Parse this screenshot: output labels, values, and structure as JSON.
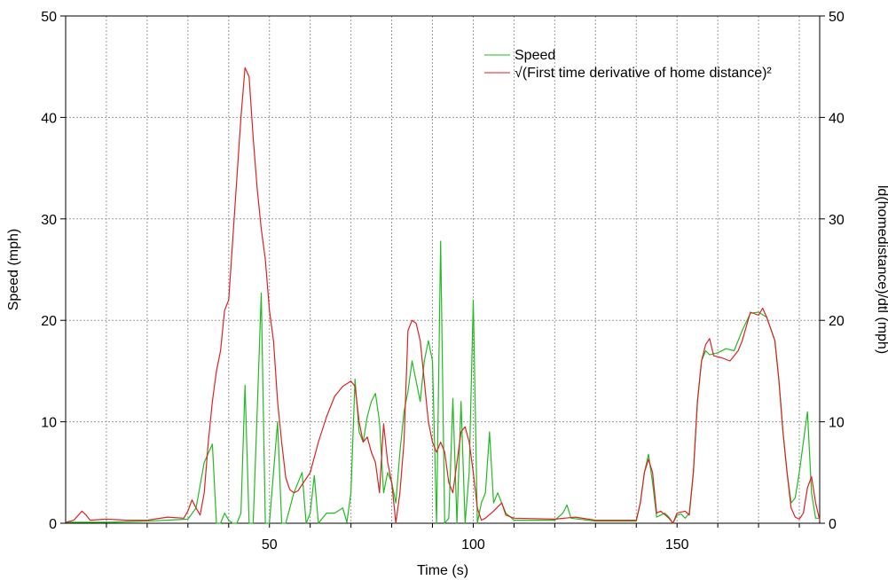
{
  "chart_data": {
    "type": "line",
    "xlabel": "Time (s)",
    "ylabel": "Speed (mph)",
    "y2label": "ld(homedistance)/dtl (mph)",
    "xlim": [
      0,
      185
    ],
    "ylim": [
      0,
      50
    ],
    "xticks": [
      50,
      100,
      150
    ],
    "yticks": [
      0,
      10,
      20,
      30,
      40,
      50
    ],
    "grid": true,
    "legend_position": "top-right",
    "series": [
      {
        "name": "Speed",
        "color": "#22bb22",
        "points": [
          [
            0,
            0.1
          ],
          [
            10,
            0.1
          ],
          [
            20,
            0.2
          ],
          [
            30,
            0.4
          ],
          [
            32,
            1.5
          ],
          [
            34,
            6
          ],
          [
            36,
            7.8
          ],
          [
            37,
            0
          ],
          [
            38,
            0
          ],
          [
            39,
            1
          ],
          [
            40,
            0.3
          ],
          [
            41,
            0
          ],
          [
            42,
            0
          ],
          [
            43,
            1
          ],
          [
            44,
            13.6
          ],
          [
            45,
            0
          ],
          [
            46,
            0
          ],
          [
            47,
            11
          ],
          [
            48,
            22.7
          ],
          [
            49,
            0
          ],
          [
            50,
            0
          ],
          [
            51,
            5
          ],
          [
            52,
            10
          ],
          [
            53,
            0
          ],
          [
            54,
            0
          ],
          [
            56,
            3
          ],
          [
            58,
            5
          ],
          [
            59,
            0
          ],
          [
            60,
            1
          ],
          [
            61,
            4.7
          ],
          [
            62,
            0
          ],
          [
            64,
            1
          ],
          [
            66,
            1
          ],
          [
            68,
            1.5
          ],
          [
            69,
            0.1
          ],
          [
            70,
            3
          ],
          [
            71,
            14.2
          ],
          [
            72,
            9
          ],
          [
            73,
            8
          ],
          [
            74,
            10.5
          ],
          [
            75,
            12
          ],
          [
            76,
            12.8
          ],
          [
            77,
            10
          ],
          [
            78,
            3
          ],
          [
            79,
            5
          ],
          [
            80,
            4
          ],
          [
            81,
            2
          ],
          [
            82,
            7
          ],
          [
            83,
            11
          ],
          [
            84,
            13
          ],
          [
            85,
            16
          ],
          [
            86,
            14
          ],
          [
            87,
            12
          ],
          [
            88,
            16
          ],
          [
            89,
            18
          ],
          [
            90,
            16
          ],
          [
            91,
            0
          ],
          [
            92,
            27.8
          ],
          [
            93,
            0
          ],
          [
            94,
            0.5
          ],
          [
            95,
            12.3
          ],
          [
            96,
            0
          ],
          [
            97,
            12
          ],
          [
            98,
            0
          ],
          [
            99,
            5
          ],
          [
            100,
            22
          ],
          [
            101,
            0
          ],
          [
            102,
            2
          ],
          [
            103,
            3
          ],
          [
            104,
            9
          ],
          [
            105,
            2
          ],
          [
            106,
            3
          ],
          [
            108,
            1
          ],
          [
            110,
            0.3
          ],
          [
            120,
            0.3
          ],
          [
            122,
            1
          ],
          [
            123,
            1.8
          ],
          [
            124,
            0.5
          ],
          [
            130,
            0.2
          ],
          [
            140,
            0.2
          ],
          [
            141,
            2
          ],
          [
            142,
            5
          ],
          [
            143,
            6.8
          ],
          [
            144,
            4
          ],
          [
            145,
            0.6
          ],
          [
            146,
            0.8
          ],
          [
            147,
            1
          ],
          [
            148,
            0.6
          ],
          [
            149,
            0
          ],
          [
            150,
            0.8
          ],
          [
            151,
            0.9
          ],
          [
            152,
            0.5
          ],
          [
            153,
            1
          ],
          [
            154,
            5
          ],
          [
            155,
            12
          ],
          [
            156,
            16
          ],
          [
            157,
            17
          ],
          [
            158,
            16.6
          ],
          [
            160,
            16.8
          ],
          [
            162,
            17.2
          ],
          [
            164,
            17
          ],
          [
            166,
            19
          ],
          [
            168,
            20.7
          ],
          [
            170,
            20.8
          ],
          [
            172,
            20.3
          ],
          [
            174,
            18
          ],
          [
            175,
            14
          ],
          [
            176,
            9
          ],
          [
            177,
            5
          ],
          [
            178,
            2
          ],
          [
            179,
            2.5
          ],
          [
            180,
            5
          ],
          [
            181,
            8
          ],
          [
            182,
            11
          ],
          [
            183,
            3
          ],
          [
            184,
            0.5
          ],
          [
            185,
            0.5
          ]
        ]
      },
      {
        "name": "√(First time derivative of home distance)²",
        "color": "#dd2222",
        "points": [
          [
            0,
            0.1
          ],
          [
            2,
            0.3
          ],
          [
            4,
            1.2
          ],
          [
            5,
            0.8
          ],
          [
            6,
            0.3
          ],
          [
            10,
            0.4
          ],
          [
            15,
            0.3
          ],
          [
            20,
            0.3
          ],
          [
            25,
            0.6
          ],
          [
            29,
            0.5
          ],
          [
            30,
            1.2
          ],
          [
            31,
            2.3
          ],
          [
            32,
            1.5
          ],
          [
            33,
            0.8
          ],
          [
            34,
            3
          ],
          [
            35,
            8
          ],
          [
            36,
            12
          ],
          [
            37,
            15
          ],
          [
            38,
            17
          ],
          [
            39,
            21
          ],
          [
            40,
            22
          ],
          [
            41,
            28
          ],
          [
            42,
            34
          ],
          [
            43,
            40
          ],
          [
            44,
            44.9
          ],
          [
            45,
            44
          ],
          [
            46,
            38
          ],
          [
            47,
            33
          ],
          [
            48,
            29
          ],
          [
            49,
            26
          ],
          [
            50,
            21
          ],
          [
            51,
            18
          ],
          [
            52,
            12
          ],
          [
            53,
            8
          ],
          [
            54,
            4.5
          ],
          [
            55,
            3.3
          ],
          [
            56,
            3
          ],
          [
            57,
            3.2
          ],
          [
            58,
            3.8
          ],
          [
            60,
            5
          ],
          [
            62,
            8
          ],
          [
            64,
            10.5
          ],
          [
            66,
            12.5
          ],
          [
            68,
            13.5
          ],
          [
            70,
            14
          ],
          [
            71,
            13.5
          ],
          [
            72,
            10
          ],
          [
            73,
            8
          ],
          [
            74,
            8.5
          ],
          [
            75,
            7
          ],
          [
            76,
            6
          ],
          [
            77,
            3
          ],
          [
            78,
            9.8
          ],
          [
            79,
            6
          ],
          [
            80,
            4
          ],
          [
            81,
            0
          ],
          [
            82,
            3
          ],
          [
            83,
            8
          ],
          [
            84,
            19
          ],
          [
            85,
            20
          ],
          [
            86,
            19.7
          ],
          [
            87,
            18
          ],
          [
            88,
            14
          ],
          [
            89,
            10
          ],
          [
            90,
            8
          ],
          [
            91,
            7
          ],
          [
            92,
            8
          ],
          [
            93,
            7
          ],
          [
            94,
            4
          ],
          [
            95,
            3
          ],
          [
            96,
            6
          ],
          [
            97,
            9
          ],
          [
            98,
            9.5
          ],
          [
            99,
            8
          ],
          [
            100,
            5
          ],
          [
            101,
            1.5
          ],
          [
            102,
            0.3
          ],
          [
            103,
            0.5
          ],
          [
            105,
            1.2
          ],
          [
            107,
            2
          ],
          [
            108,
            0.8
          ],
          [
            110,
            0.5
          ],
          [
            120,
            0.4
          ],
          [
            125,
            0.6
          ],
          [
            130,
            0.3
          ],
          [
            140,
            0.3
          ],
          [
            141,
            2
          ],
          [
            142,
            5
          ],
          [
            143,
            6.3
          ],
          [
            144,
            5
          ],
          [
            145,
            1
          ],
          [
            146,
            1.2
          ],
          [
            148,
            0.5
          ],
          [
            149,
            0
          ],
          [
            150,
            1
          ],
          [
            152,
            1.2
          ],
          [
            153,
            0.8
          ],
          [
            154,
            5
          ],
          [
            155,
            12
          ],
          [
            156,
            16
          ],
          [
            157,
            17.6
          ],
          [
            158,
            18.2
          ],
          [
            159,
            16.5
          ],
          [
            161,
            16.3
          ],
          [
            163,
            16
          ],
          [
            165,
            17
          ],
          [
            166,
            18
          ],
          [
            168,
            20.8
          ],
          [
            170,
            20.5
          ],
          [
            171,
            21.2
          ],
          [
            172,
            20.3
          ],
          [
            174,
            18
          ],
          [
            175,
            14
          ],
          [
            176,
            9
          ],
          [
            177,
            5
          ],
          [
            178,
            1.5
          ],
          [
            179,
            0.6
          ],
          [
            180,
            0.4
          ],
          [
            181,
            1
          ],
          [
            182,
            3.5
          ],
          [
            183,
            4.6
          ],
          [
            184,
            2
          ],
          [
            185,
            0.3
          ]
        ]
      }
    ]
  }
}
